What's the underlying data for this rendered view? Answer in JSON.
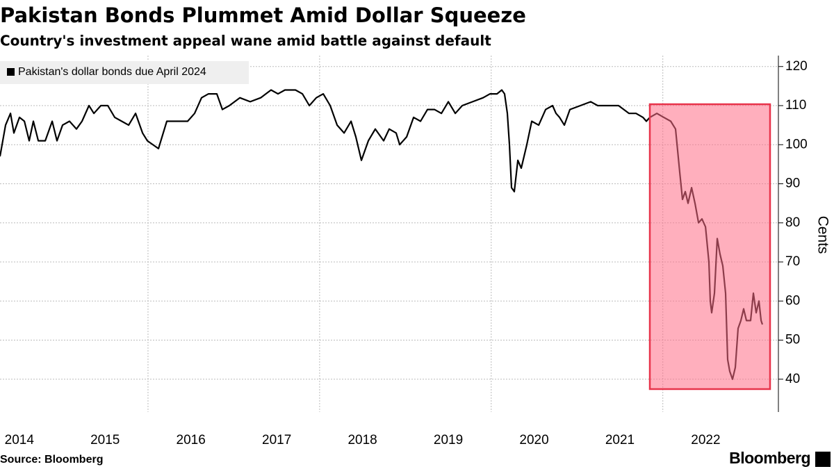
{
  "chart_data": {
    "type": "line",
    "title": "Pakistan Bonds Plummet Amid Dollar Squeeze",
    "subtitle": "Country's investment appeal wane amid battle against default",
    "ylabel": "Cents",
    "source": "Source: Bloomberg",
    "brand": "Bloomberg",
    "x": [
      2014.275,
      2014.34,
      2014.397,
      2014.437,
      2014.502,
      2014.559,
      2014.615,
      2014.664,
      2014.721,
      2014.802,
      2014.883,
      2014.939,
      2015.004,
      2015.085,
      2015.166,
      2015.231,
      2015.312,
      2015.369,
      2015.45,
      2015.531,
      2015.612,
      2015.693,
      2015.774,
      2015.855,
      2015.936,
      2015.992,
      2016.122,
      2016.219,
      2016.341,
      2016.462,
      2016.543,
      2016.624,
      2016.705,
      2016.802,
      2016.867,
      2016.948,
      2017.07,
      2017.191,
      2017.313,
      2017.434,
      2017.515,
      2017.596,
      2017.718,
      2017.799,
      2017.88,
      2017.961,
      2018.042,
      2018.123,
      2018.204,
      2018.285,
      2018.366,
      2018.422,
      2018.487,
      2018.568,
      2018.649,
      2018.746,
      2018.811,
      2018.892,
      2018.933,
      2019.014,
      2019.095,
      2019.176,
      2019.257,
      2019.338,
      2019.419,
      2019.5,
      2019.581,
      2019.662,
      2019.783,
      2019.905,
      2019.986,
      2020.067,
      2020.123,
      2020.156,
      2020.188,
      2020.212,
      2020.237,
      2020.269,
      2020.31,
      2020.35,
      2020.415,
      2020.472,
      2020.553,
      2020.634,
      2020.715,
      2020.755,
      2020.796,
      2020.852,
      2020.917,
      2021.039,
      2021.16,
      2021.241,
      2021.363,
      2021.484,
      2021.606,
      2021.687,
      2021.768,
      2021.808,
      2021.849,
      2021.93,
      2022.011,
      2022.092,
      2022.148,
      2022.197,
      2022.229,
      2022.262,
      2022.294,
      2022.335,
      2022.375,
      2022.416,
      2022.456,
      2022.497,
      2022.537,
      2022.553,
      2022.569,
      2022.602,
      2022.634,
      2022.667,
      2022.699,
      2022.731,
      2022.756,
      2022.78,
      2022.812,
      2022.845,
      2022.877,
      2022.91,
      2022.942,
      2022.974,
      2023.023,
      2023.055,
      2023.088,
      2023.12,
      2023.145,
      2023.161
    ],
    "series": [
      {
        "name": "Pakistan's dollar bonds due April 2024",
        "color": "#000000",
        "values": [
          97,
          105,
          108,
          103,
          107,
          106,
          101,
          106,
          101,
          101,
          106,
          101,
          105,
          106,
          104,
          106,
          110,
          108,
          110,
          110,
          107,
          106,
          105,
          108,
          103,
          101,
          99,
          106,
          106,
          106,
          108,
          112,
          113,
          113,
          109,
          110,
          112,
          111,
          112,
          114,
          113,
          114,
          114,
          113,
          110,
          112,
          113,
          110,
          105,
          103,
          106,
          102,
          96,
          101,
          104,
          101,
          104,
          103,
          100,
          102,
          107,
          106,
          109,
          109,
          108,
          111,
          108,
          110,
          111,
          112,
          113,
          113,
          114,
          113,
          108,
          100,
          89,
          88,
          96,
          94,
          100,
          106,
          105,
          109,
          110,
          108,
          107,
          105,
          109,
          110,
          111,
          110,
          110,
          110,
          108,
          108,
          107,
          106,
          107,
          108,
          107,
          106,
          104,
          93,
          86,
          88,
          85,
          89,
          85,
          80,
          81,
          79,
          70,
          60,
          57,
          62,
          76,
          72,
          69,
          62,
          45,
          42,
          40,
          43,
          53,
          55,
          58,
          55,
          55,
          62,
          57,
          60,
          55,
          54
        ]
      }
    ],
    "xlim": [
      2014.275,
      2023.347
    ],
    "xticks": [
      {
        "value": 2014.5,
        "label": "2014"
      },
      {
        "value": 2015.5,
        "label": "2015"
      },
      {
        "value": 2016.5,
        "label": "2016"
      },
      {
        "value": 2017.5,
        "label": "2017"
      },
      {
        "value": 2018.5,
        "label": "2018"
      },
      {
        "value": 2019.5,
        "label": "2019"
      },
      {
        "value": 2020.5,
        "label": "2020"
      },
      {
        "value": 2021.5,
        "label": "2021"
      },
      {
        "value": 2022.5,
        "label": "2022"
      }
    ],
    "xgrid": [
      2016,
      2018,
      2020,
      2022
    ],
    "ylim": [
      31.6,
      122.8
    ],
    "yticks": [
      40,
      50,
      60,
      70,
      80,
      90,
      100,
      110,
      120
    ],
    "grid": true,
    "legend": "top-left"
  }
}
